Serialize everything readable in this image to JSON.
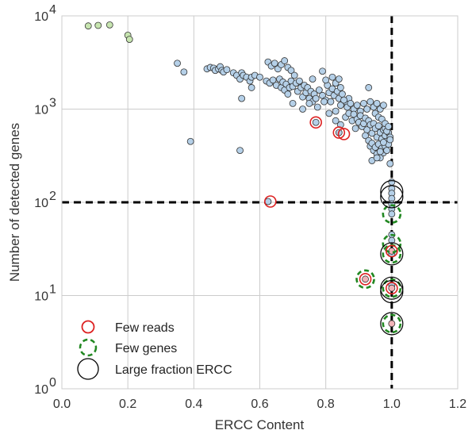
{
  "chart_data": {
    "type": "scatter",
    "xlabel": "ERCC Content",
    "ylabel": "Number of detected genes",
    "xlim": [
      0.0,
      1.2
    ],
    "ylim": [
      1,
      10000
    ],
    "y_scale": "log",
    "grid": true,
    "x_ticks": [
      {
        "value": 0.0,
        "label": "0.0"
      },
      {
        "value": 0.2,
        "label": "0.2"
      },
      {
        "value": 0.4,
        "label": "0.4"
      },
      {
        "value": 0.6,
        "label": "0.6"
      },
      {
        "value": 0.8,
        "label": "0.8"
      },
      {
        "value": 1.0,
        "label": "1.0"
      },
      {
        "value": 1.2,
        "label": "1.2"
      }
    ],
    "y_ticks": [
      {
        "value": 1,
        "base": "10",
        "exp": "0"
      },
      {
        "value": 10,
        "base": "10",
        "exp": "1"
      },
      {
        "value": 100,
        "base": "10",
        "exp": "2"
      },
      {
        "value": 1000,
        "base": "10",
        "exp": "3"
      },
      {
        "value": 10000,
        "base": "10",
        "exp": "4"
      }
    ],
    "thresholds": {
      "x": 1.0,
      "y": 100
    },
    "colors": {
      "cell": "#b5d0e8",
      "green_cell": "#c7e5b0",
      "pink_cell": "#f2b3b8",
      "few_reads": "#dd2222",
      "few_genes": "#228822",
      "large_ercc": "#000000",
      "grid": "#cccccc",
      "threshold": "#000000"
    },
    "legend": {
      "placement": "lower-left",
      "entries": [
        {
          "label": "Few reads",
          "marker": "few_reads"
        },
        {
          "label": "Few genes",
          "marker": "few_genes"
        },
        {
          "label": "Large fraction ERCC",
          "marker": "large_ercc"
        }
      ]
    },
    "green_cells": [
      {
        "x": 0.08,
        "y": 7800
      },
      {
        "x": 0.11,
        "y": 7900
      },
      {
        "x": 0.145,
        "y": 8000
      },
      {
        "x": 0.2,
        "y": 6200
      },
      {
        "x": 0.205,
        "y": 5600
      }
    ],
    "pink_cells": [
      {
        "x": 1.0,
        "y": 30
      },
      {
        "x": 1.0,
        "y": 12
      },
      {
        "x": 1.0,
        "y": 5
      },
      {
        "x": 0.92,
        "y": 15
      }
    ],
    "cells": [
      {
        "x": 0.35,
        "y": 3100
      },
      {
        "x": 0.37,
        "y": 2500
      },
      {
        "x": 0.39,
        "y": 450
      },
      {
        "x": 0.54,
        "y": 360
      },
      {
        "x": 0.44,
        "y": 2700
      },
      {
        "x": 0.45,
        "y": 2800
      },
      {
        "x": 0.46,
        "y": 2750
      },
      {
        "x": 0.465,
        "y": 2600
      },
      {
        "x": 0.475,
        "y": 2700
      },
      {
        "x": 0.48,
        "y": 2850
      },
      {
        "x": 0.485,
        "y": 2600
      },
      {
        "x": 0.49,
        "y": 2500
      },
      {
        "x": 0.5,
        "y": 2650
      },
      {
        "x": 0.52,
        "y": 2450
      },
      {
        "x": 0.53,
        "y": 2300
      },
      {
        "x": 0.54,
        "y": 2100
      },
      {
        "x": 0.545,
        "y": 2450
      },
      {
        "x": 0.55,
        "y": 2300
      },
      {
        "x": 0.56,
        "y": 2200
      },
      {
        "x": 0.57,
        "y": 2000
      },
      {
        "x": 0.575,
        "y": 2200
      },
      {
        "x": 0.585,
        "y": 2300
      },
      {
        "x": 0.6,
        "y": 2200
      },
      {
        "x": 0.545,
        "y": 1300
      },
      {
        "x": 0.575,
        "y": 1700
      },
      {
        "x": 0.625,
        "y": 3200
      },
      {
        "x": 0.635,
        "y": 2900
      },
      {
        "x": 0.645,
        "y": 3100
      },
      {
        "x": 0.655,
        "y": 2700
      },
      {
        "x": 0.665,
        "y": 3000
      },
      {
        "x": 0.675,
        "y": 3300
      },
      {
        "x": 0.685,
        "y": 2800
      },
      {
        "x": 0.695,
        "y": 2600
      },
      {
        "x": 0.62,
        "y": 2000
      },
      {
        "x": 0.63,
        "y": 1900
      },
      {
        "x": 0.64,
        "y": 2050
      },
      {
        "x": 0.65,
        "y": 1800
      },
      {
        "x": 0.66,
        "y": 2100
      },
      {
        "x": 0.665,
        "y": 1700
      },
      {
        "x": 0.67,
        "y": 1950
      },
      {
        "x": 0.675,
        "y": 1600
      },
      {
        "x": 0.68,
        "y": 1850
      },
      {
        "x": 0.685,
        "y": 1450
      },
      {
        "x": 0.69,
        "y": 1700
      },
      {
        "x": 0.695,
        "y": 2000
      },
      {
        "x": 0.7,
        "y": 1750
      },
      {
        "x": 0.705,
        "y": 2300
      },
      {
        "x": 0.71,
        "y": 1900
      },
      {
        "x": 0.715,
        "y": 1550
      },
      {
        "x": 0.72,
        "y": 2000
      },
      {
        "x": 0.725,
        "y": 1700
      },
      {
        "x": 0.73,
        "y": 1350
      },
      {
        "x": 0.735,
        "y": 1800
      },
      {
        "x": 0.74,
        "y": 1500
      },
      {
        "x": 0.745,
        "y": 1700
      },
      {
        "x": 0.75,
        "y": 1300
      },
      {
        "x": 0.755,
        "y": 1550
      },
      {
        "x": 0.76,
        "y": 1200
      },
      {
        "x": 0.765,
        "y": 1450
      },
      {
        "x": 0.77,
        "y": 1300
      },
      {
        "x": 0.78,
        "y": 1600
      },
      {
        "x": 0.79,
        "y": 1400
      },
      {
        "x": 0.8,
        "y": 1250
      },
      {
        "x": 0.805,
        "y": 1800
      },
      {
        "x": 0.81,
        "y": 1500
      },
      {
        "x": 0.815,
        "y": 1200
      },
      {
        "x": 0.82,
        "y": 1650
      },
      {
        "x": 0.825,
        "y": 1400
      },
      {
        "x": 0.83,
        "y": 1900
      },
      {
        "x": 0.835,
        "y": 1550
      },
      {
        "x": 0.84,
        "y": 1300
      },
      {
        "x": 0.845,
        "y": 1700
      },
      {
        "x": 0.85,
        "y": 1450
      },
      {
        "x": 0.86,
        "y": 1200
      },
      {
        "x": 0.87,
        "y": 1300
      },
      {
        "x": 0.8,
        "y": 2050
      },
      {
        "x": 0.82,
        "y": 2200
      },
      {
        "x": 0.84,
        "y": 2100
      },
      {
        "x": 0.79,
        "y": 2550
      },
      {
        "x": 0.76,
        "y": 2100
      },
      {
        "x": 0.7,
        "y": 1150
      },
      {
        "x": 0.73,
        "y": 1000
      },
      {
        "x": 0.75,
        "y": 1150
      },
      {
        "x": 0.775,
        "y": 1050
      },
      {
        "x": 0.795,
        "y": 1200
      },
      {
        "x": 0.81,
        "y": 900
      },
      {
        "x": 0.83,
        "y": 950
      },
      {
        "x": 0.845,
        "y": 1100
      },
      {
        "x": 0.855,
        "y": 1250
      },
      {
        "x": 0.865,
        "y": 1050
      },
      {
        "x": 0.875,
        "y": 1150
      },
      {
        "x": 0.885,
        "y": 1000
      },
      {
        "x": 0.895,
        "y": 1100
      },
      {
        "x": 0.905,
        "y": 950
      },
      {
        "x": 0.915,
        "y": 1150
      },
      {
        "x": 0.925,
        "y": 1000
      },
      {
        "x": 0.93,
        "y": 1700
      },
      {
        "x": 0.935,
        "y": 1200
      },
      {
        "x": 0.945,
        "y": 1050
      },
      {
        "x": 0.955,
        "y": 1150
      },
      {
        "x": 0.965,
        "y": 1000
      },
      {
        "x": 0.975,
        "y": 1100
      },
      {
        "x": 0.83,
        "y": 750
      },
      {
        "x": 0.845,
        "y": 680
      },
      {
        "x": 0.86,
        "y": 820
      },
      {
        "x": 0.87,
        "y": 900
      },
      {
        "x": 0.88,
        "y": 750
      },
      {
        "x": 0.885,
        "y": 880
      },
      {
        "x": 0.89,
        "y": 620
      },
      {
        "x": 0.895,
        "y": 780
      },
      {
        "x": 0.9,
        "y": 720
      },
      {
        "x": 0.905,
        "y": 850
      },
      {
        "x": 0.91,
        "y": 650
      },
      {
        "x": 0.915,
        "y": 700
      },
      {
        "x": 0.92,
        "y": 800
      },
      {
        "x": 0.925,
        "y": 600
      },
      {
        "x": 0.93,
        "y": 750
      },
      {
        "x": 0.935,
        "y": 680
      },
      {
        "x": 0.94,
        "y": 550
      },
      {
        "x": 0.945,
        "y": 700
      },
      {
        "x": 0.95,
        "y": 620
      },
      {
        "x": 0.955,
        "y": 500
      },
      {
        "x": 0.96,
        "y": 660
      },
      {
        "x": 0.965,
        "y": 560
      },
      {
        "x": 0.97,
        "y": 480
      },
      {
        "x": 0.975,
        "y": 600
      },
      {
        "x": 0.98,
        "y": 520
      },
      {
        "x": 0.985,
        "y": 450
      },
      {
        "x": 0.99,
        "y": 560
      },
      {
        "x": 0.995,
        "y": 500
      },
      {
        "x": 0.92,
        "y": 520
      },
      {
        "x": 0.93,
        "y": 460
      },
      {
        "x": 0.935,
        "y": 400
      },
      {
        "x": 0.94,
        "y": 430
      },
      {
        "x": 0.945,
        "y": 360
      },
      {
        "x": 0.95,
        "y": 390
      },
      {
        "x": 0.955,
        "y": 330
      },
      {
        "x": 0.96,
        "y": 420
      },
      {
        "x": 0.965,
        "y": 300
      },
      {
        "x": 0.97,
        "y": 380
      },
      {
        "x": 0.975,
        "y": 340
      },
      {
        "x": 0.98,
        "y": 400
      },
      {
        "x": 0.985,
        "y": 360
      },
      {
        "x": 0.99,
        "y": 420
      },
      {
        "x": 0.995,
        "y": 470
      },
      {
        "x": 0.94,
        "y": 280
      },
      {
        "x": 0.955,
        "y": 300
      },
      {
        "x": 0.965,
        "y": 350
      },
      {
        "x": 0.975,
        "y": 440
      },
      {
        "x": 0.98,
        "y": 620
      },
      {
        "x": 0.985,
        "y": 580
      },
      {
        "x": 0.95,
        "y": 900
      },
      {
        "x": 0.96,
        "y": 820
      },
      {
        "x": 0.97,
        "y": 780
      },
      {
        "x": 0.98,
        "y": 700
      },
      {
        "x": 0.99,
        "y": 650
      },
      {
        "x": 0.995,
        "y": 260
      },
      {
        "x": 1.0,
        "y": 165
      },
      {
        "x": 1.0,
        "y": 140
      },
      {
        "x": 1.0,
        "y": 125
      },
      {
        "x": 1.0,
        "y": 110
      },
      {
        "x": 1.0,
        "y": 96
      },
      {
        "x": 1.0,
        "y": 85
      },
      {
        "x": 1.0,
        "y": 75
      },
      {
        "x": 1.0,
        "y": 45
      },
      {
        "x": 1.0,
        "y": 39
      },
      {
        "x": 1.0,
        "y": 28
      },
      {
        "x": 1.0,
        "y": 13
      },
      {
        "x": 0.77,
        "y": 720
      },
      {
        "x": 0.84,
        "y": 560
      },
      {
        "x": 0.625,
        "y": 102
      }
    ],
    "few_reads_markers": [
      {
        "x": 0.77,
        "y": 720
      },
      {
        "x": 0.84,
        "y": 560
      },
      {
        "x": 0.855,
        "y": 540
      },
      {
        "x": 0.632,
        "y": 102
      },
      {
        "x": 0.92,
        "y": 15
      },
      {
        "x": 1.0,
        "y": 30
      },
      {
        "x": 1.0,
        "y": 12
      }
    ],
    "few_genes_markers": [
      {
        "x": 1.0,
        "y": 75
      },
      {
        "x": 1.0,
        "y": 36
      },
      {
        "x": 1.0,
        "y": 28
      },
      {
        "x": 1.0,
        "y": 12
      },
      {
        "x": 1.0,
        "y": 5
      },
      {
        "x": 0.92,
        "y": 15
      }
    ],
    "large_ercc_markers": [
      {
        "x": 1.0,
        "y": 130
      },
      {
        "x": 1.0,
        "y": 115
      },
      {
        "x": 1.0,
        "y": 28
      },
      {
        "x": 1.0,
        "y": 12
      },
      {
        "x": 1.0,
        "y": 11
      },
      {
        "x": 1.0,
        "y": 5
      }
    ]
  }
}
